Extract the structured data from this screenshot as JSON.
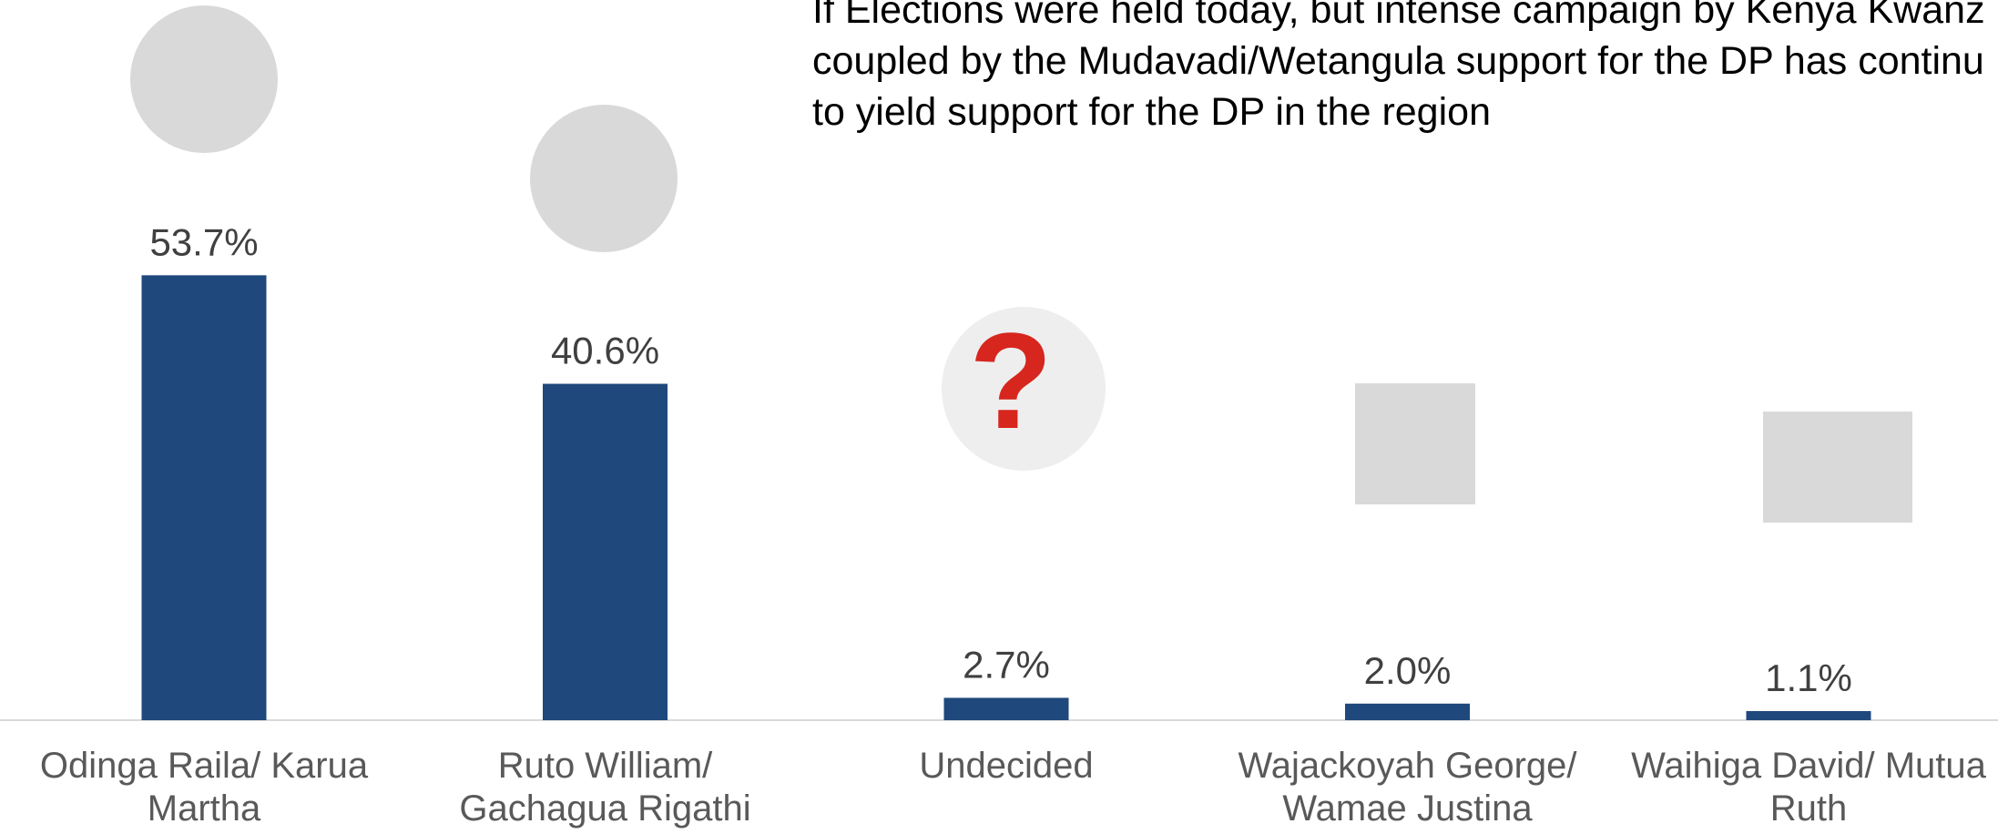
{
  "chart_data": {
    "type": "bar",
    "annotation": [
      "If Elections were held today, but intense campaign  by Kenya Kwanz",
      "coupled by the Mudavadi/Wetangula support for the DP has continu",
      "to  yield support for the  DP in the region"
    ],
    "categories": [
      "Odinga Raila/ Karua Martha",
      "Ruto William/ Gachagua Rigathi",
      "Undecided",
      "Wajackoyah George/ Wamae Justina",
      "Waihiga David/ Mutua Ruth"
    ],
    "values": [
      53.7,
      40.6,
      2.7,
      2.0,
      1.1
    ],
    "value_labels": [
      "53.7%",
      "40.6%",
      "2.7%",
      "2.0%",
      "1.1%"
    ],
    "color": "#1f497d"
  }
}
